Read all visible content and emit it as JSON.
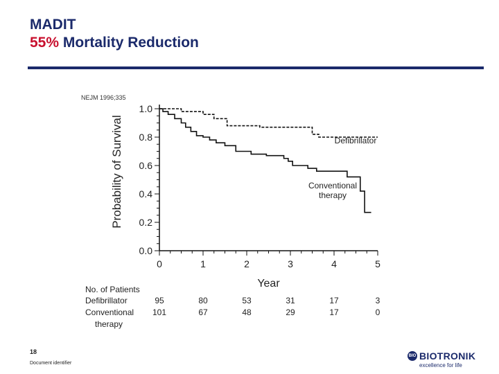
{
  "slide": {
    "title_line1": "MADIT",
    "title_line2_highlight": "55%",
    "title_line2_rest": "Mortality Reduction",
    "slide_number": "18",
    "document_identifier": "Document identifier"
  },
  "logo": {
    "name": "BIOTRONIK",
    "tagline": "excellence for life",
    "mark_text": "BIO"
  },
  "chart_data": {
    "type": "line",
    "citation": "NEJM 1996;335",
    "ylabel": "Probability of Survival",
    "xlabel": "Year",
    "ylim": [
      0.0,
      1.0
    ],
    "xlim": [
      0,
      5
    ],
    "yticks": [
      "0.0",
      "0.2",
      "0.4",
      "0.6",
      "0.8",
      "1.0"
    ],
    "xticks": [
      "0",
      "1",
      "2",
      "3",
      "4",
      "5"
    ],
    "grid": false,
    "series": [
      {
        "name": "Defibrillator",
        "style": "dashed",
        "label_lines": [
          "Defibrillator"
        ],
        "x": [
          0,
          0.5,
          0.5,
          1.0,
          1.0,
          1.25,
          1.25,
          1.55,
          1.55,
          2.3,
          2.3,
          3.5,
          3.5,
          3.65,
          3.65,
          5.0
        ],
        "y": [
          1.0,
          1.0,
          0.98,
          0.98,
          0.96,
          0.96,
          0.93,
          0.93,
          0.88,
          0.88,
          0.87,
          0.87,
          0.82,
          0.82,
          0.8,
          0.8
        ]
      },
      {
        "name": "Conventional therapy",
        "style": "solid",
        "label_lines": [
          "Conventional",
          "therapy"
        ],
        "x": [
          0,
          0.08,
          0.08,
          0.2,
          0.2,
          0.35,
          0.35,
          0.5,
          0.5,
          0.6,
          0.6,
          0.72,
          0.72,
          0.85,
          0.85,
          1.0,
          1.0,
          1.15,
          1.15,
          1.3,
          1.3,
          1.5,
          1.5,
          1.75,
          1.75,
          2.1,
          2.1,
          2.45,
          2.45,
          2.85,
          2.85,
          2.95,
          2.95,
          3.05,
          3.05,
          3.4,
          3.4,
          3.6,
          3.6,
          4.3,
          4.3,
          4.6,
          4.6,
          4.7,
          4.7,
          4.85
        ],
        "y": [
          1.0,
          1.0,
          0.98,
          0.98,
          0.96,
          0.96,
          0.93,
          0.93,
          0.9,
          0.9,
          0.87,
          0.87,
          0.84,
          0.84,
          0.81,
          0.81,
          0.8,
          0.8,
          0.78,
          0.78,
          0.76,
          0.76,
          0.74,
          0.74,
          0.7,
          0.7,
          0.68,
          0.68,
          0.67,
          0.67,
          0.65,
          0.65,
          0.63,
          0.63,
          0.6,
          0.6,
          0.58,
          0.58,
          0.56,
          0.56,
          0.52,
          0.52,
          0.42,
          0.42,
          0.27,
          0.27
        ]
      }
    ],
    "patients": {
      "header": "No. of Patients",
      "rows": [
        {
          "label_lines": [
            "Defibrillator"
          ],
          "values": [
            "95",
            "80",
            "53",
            "31",
            "17",
            "3"
          ]
        },
        {
          "label_lines": [
            "Conventional",
            "therapy"
          ],
          "values": [
            "101",
            "67",
            "48",
            "29",
            "17",
            "0"
          ]
        }
      ]
    }
  }
}
